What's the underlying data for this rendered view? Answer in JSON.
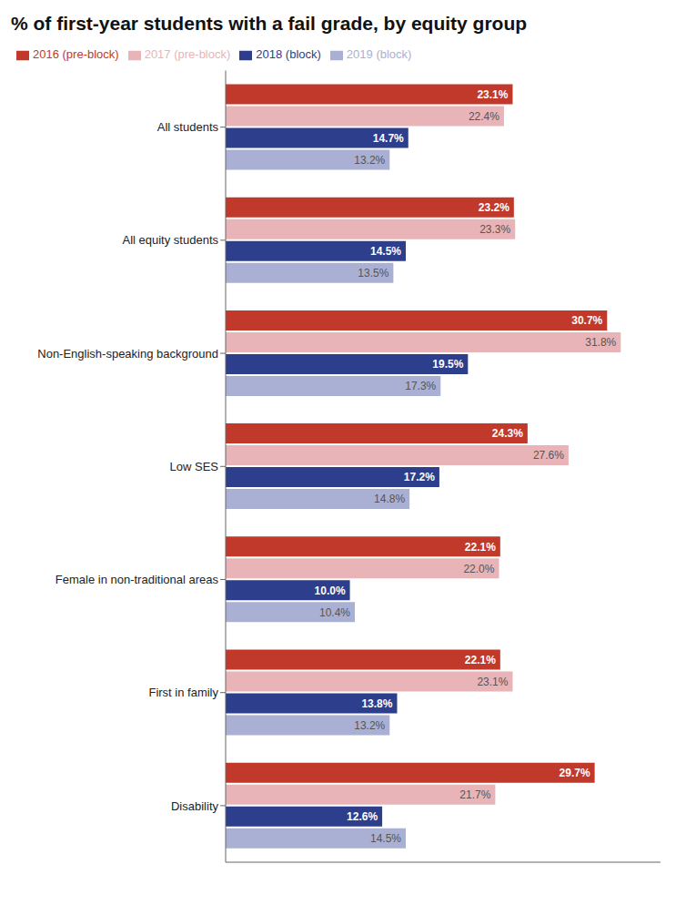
{
  "chart_data": {
    "type": "bar",
    "orientation": "horizontal",
    "title": "% of first-year students with a fail grade, by equity group",
    "categories": [
      "All students",
      "All equity students",
      "Non-English-speaking background",
      "Low SES",
      "Female in non-traditional areas",
      "First in family",
      "Disability"
    ],
    "series": [
      {
        "name": "2016 (pre-block)",
        "color": "#c0392b",
        "values": [
          23.1,
          23.2,
          30.7,
          24.3,
          22.1,
          22.1,
          29.7
        ],
        "value_labels": [
          "23.1%",
          "23.2%",
          "30.7%",
          "24.3%",
          "22.1%",
          "22.1%",
          "29.7%"
        ]
      },
      {
        "name": "2017 (pre-block)",
        "color": "#e8b4b8",
        "values": [
          22.4,
          23.3,
          31.8,
          27.6,
          22.0,
          23.1,
          21.7
        ],
        "value_labels": [
          "22.4%",
          "23.3%",
          "31.8%",
          "27.6%",
          "22.0%",
          "23.1%",
          "21.7%"
        ]
      },
      {
        "name": "2018 (block)",
        "color": "#2c3e8c",
        "values": [
          14.7,
          14.5,
          19.5,
          17.2,
          10.0,
          13.8,
          12.6
        ],
        "value_labels": [
          "14.7%",
          "14.5%",
          "19.5%",
          "17.2%",
          "10.0%",
          "13.8%",
          "12.6%"
        ]
      },
      {
        "name": "2019 (block)",
        "color": "#aab0d4",
        "values": [
          13.2,
          13.5,
          17.3,
          14.8,
          10.4,
          13.2,
          14.5
        ],
        "value_labels": [
          "13.2%",
          "13.5%",
          "17.3%",
          "14.8%",
          "10.4%",
          "13.2%",
          "14.5%"
        ]
      }
    ],
    "xlim": [
      0,
      35
    ],
    "grid": false,
    "legend": "top",
    "data_labels": true,
    "tick_labels": "y"
  }
}
